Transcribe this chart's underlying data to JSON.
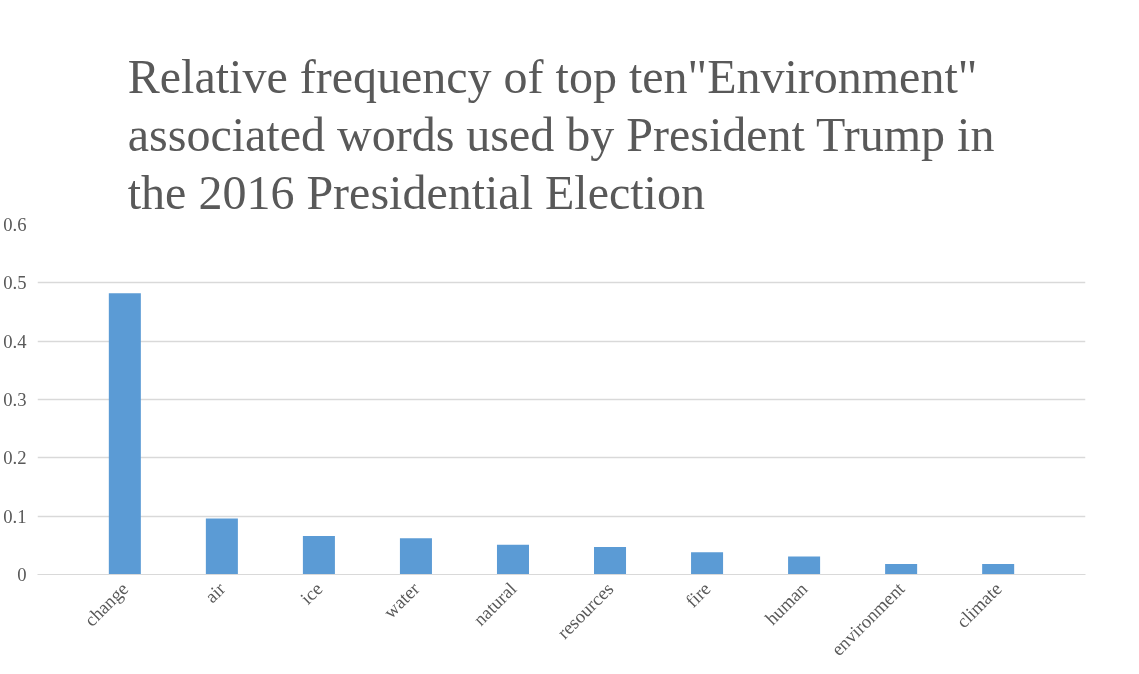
{
  "chart_data": {
    "type": "bar",
    "title": "Relative frequency of  top ten\"Environment\" associated words used by President Trump in the 2016 Presidential Election",
    "categories": [
      "change",
      "air",
      "ice",
      "water",
      "natural",
      "resources",
      "fire",
      "human",
      "environment",
      "climate"
    ],
    "values": [
      0.482,
      0.096,
      0.066,
      0.062,
      0.051,
      0.047,
      0.038,
      0.031,
      0.018,
      0.018
    ],
    "color": "#5b9bd5",
    "ylim": [
      0,
      0.6
    ],
    "yticks": [
      0,
      0.1,
      0.2,
      0.3,
      0.4,
      0.5,
      0.6
    ],
    "grid": "y"
  }
}
